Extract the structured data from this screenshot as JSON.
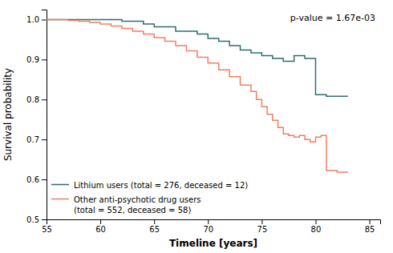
{
  "chart_data": {
    "type": "line",
    "xlabel": "Timeline [years]",
    "ylabel": "Survival probability",
    "annotation": "p-value = 1.67e-03",
    "xlim": [
      55,
      86
    ],
    "ylim": [
      0.5,
      1.025
    ],
    "xticks": [
      55,
      60,
      65,
      70,
      75,
      80,
      85
    ],
    "yticks": [
      0.5,
      0.6,
      0.7,
      0.8,
      0.9,
      {
        "value": 1.0,
        "label": "1.0"
      }
    ],
    "grid": false,
    "legend": "lower left",
    "series": [
      {
        "name": "Lithium users (total = 276, deceased = 12)",
        "color": "#2d6e6e",
        "x": [
          55,
          62,
          62,
          64,
          64,
          65,
          65,
          67,
          67,
          69,
          69,
          70,
          70,
          71,
          71,
          72,
          72,
          73,
          73,
          74,
          74,
          75,
          75,
          76,
          76,
          77,
          77,
          78,
          78,
          79,
          79,
          80,
          80,
          81,
          81,
          83,
          83
        ],
        "values": [
          1.0,
          1.0,
          0.996,
          0.996,
          0.989,
          0.989,
          0.982,
          0.982,
          0.971,
          0.971,
          0.964,
          0.964,
          0.953,
          0.953,
          0.946,
          0.946,
          0.935,
          0.935,
          0.924,
          0.924,
          0.917,
          0.917,
          0.91,
          0.91,
          0.903,
          0.903,
          0.896,
          0.896,
          0.91,
          0.91,
          0.903,
          0.903,
          0.812,
          0.812,
          0.808,
          0.808,
          0.808
        ]
      },
      {
        "name": "Other anti-psychotic drug users\n(total = 552, deceased = 58)",
        "color": "#f08060",
        "x": [
          55,
          57,
          57,
          58,
          58,
          59,
          59,
          60,
          60,
          61,
          61,
          62,
          62,
          63,
          63,
          64,
          64,
          65,
          65,
          66,
          66,
          67,
          67,
          68,
          68,
          69,
          69,
          70,
          70,
          71,
          71,
          72,
          72,
          73,
          73,
          74,
          74,
          74.5,
          74.5,
          75,
          75,
          75.5,
          75.5,
          76,
          76,
          76.5,
          76.5,
          77,
          77,
          77.5,
          77.5,
          78,
          78,
          78.5,
          78.5,
          79,
          79,
          79.5,
          79.5,
          80,
          80,
          80.5,
          80.5,
          81,
          81,
          82,
          82,
          83,
          83
        ],
        "values": [
          1.0,
          1.0,
          0.998,
          0.998,
          0.996,
          0.996,
          0.993,
          0.993,
          0.989,
          0.989,
          0.984,
          0.984,
          0.978,
          0.978,
          0.971,
          0.971,
          0.964,
          0.964,
          0.955,
          0.955,
          0.946,
          0.946,
          0.935,
          0.935,
          0.922,
          0.922,
          0.906,
          0.906,
          0.891,
          0.891,
          0.874,
          0.874,
          0.857,
          0.857,
          0.836,
          0.836,
          0.82,
          0.82,
          0.8,
          0.8,
          0.782,
          0.782,
          0.763,
          0.763,
          0.748,
          0.748,
          0.73,
          0.73,
          0.714,
          0.714,
          0.71,
          0.71,
          0.706,
          0.706,
          0.71,
          0.71,
          0.7,
          0.7,
          0.694,
          0.694,
          0.706,
          0.706,
          0.71,
          0.71,
          0.622,
          0.622,
          0.618,
          0.618,
          0.618
        ]
      }
    ]
  }
}
